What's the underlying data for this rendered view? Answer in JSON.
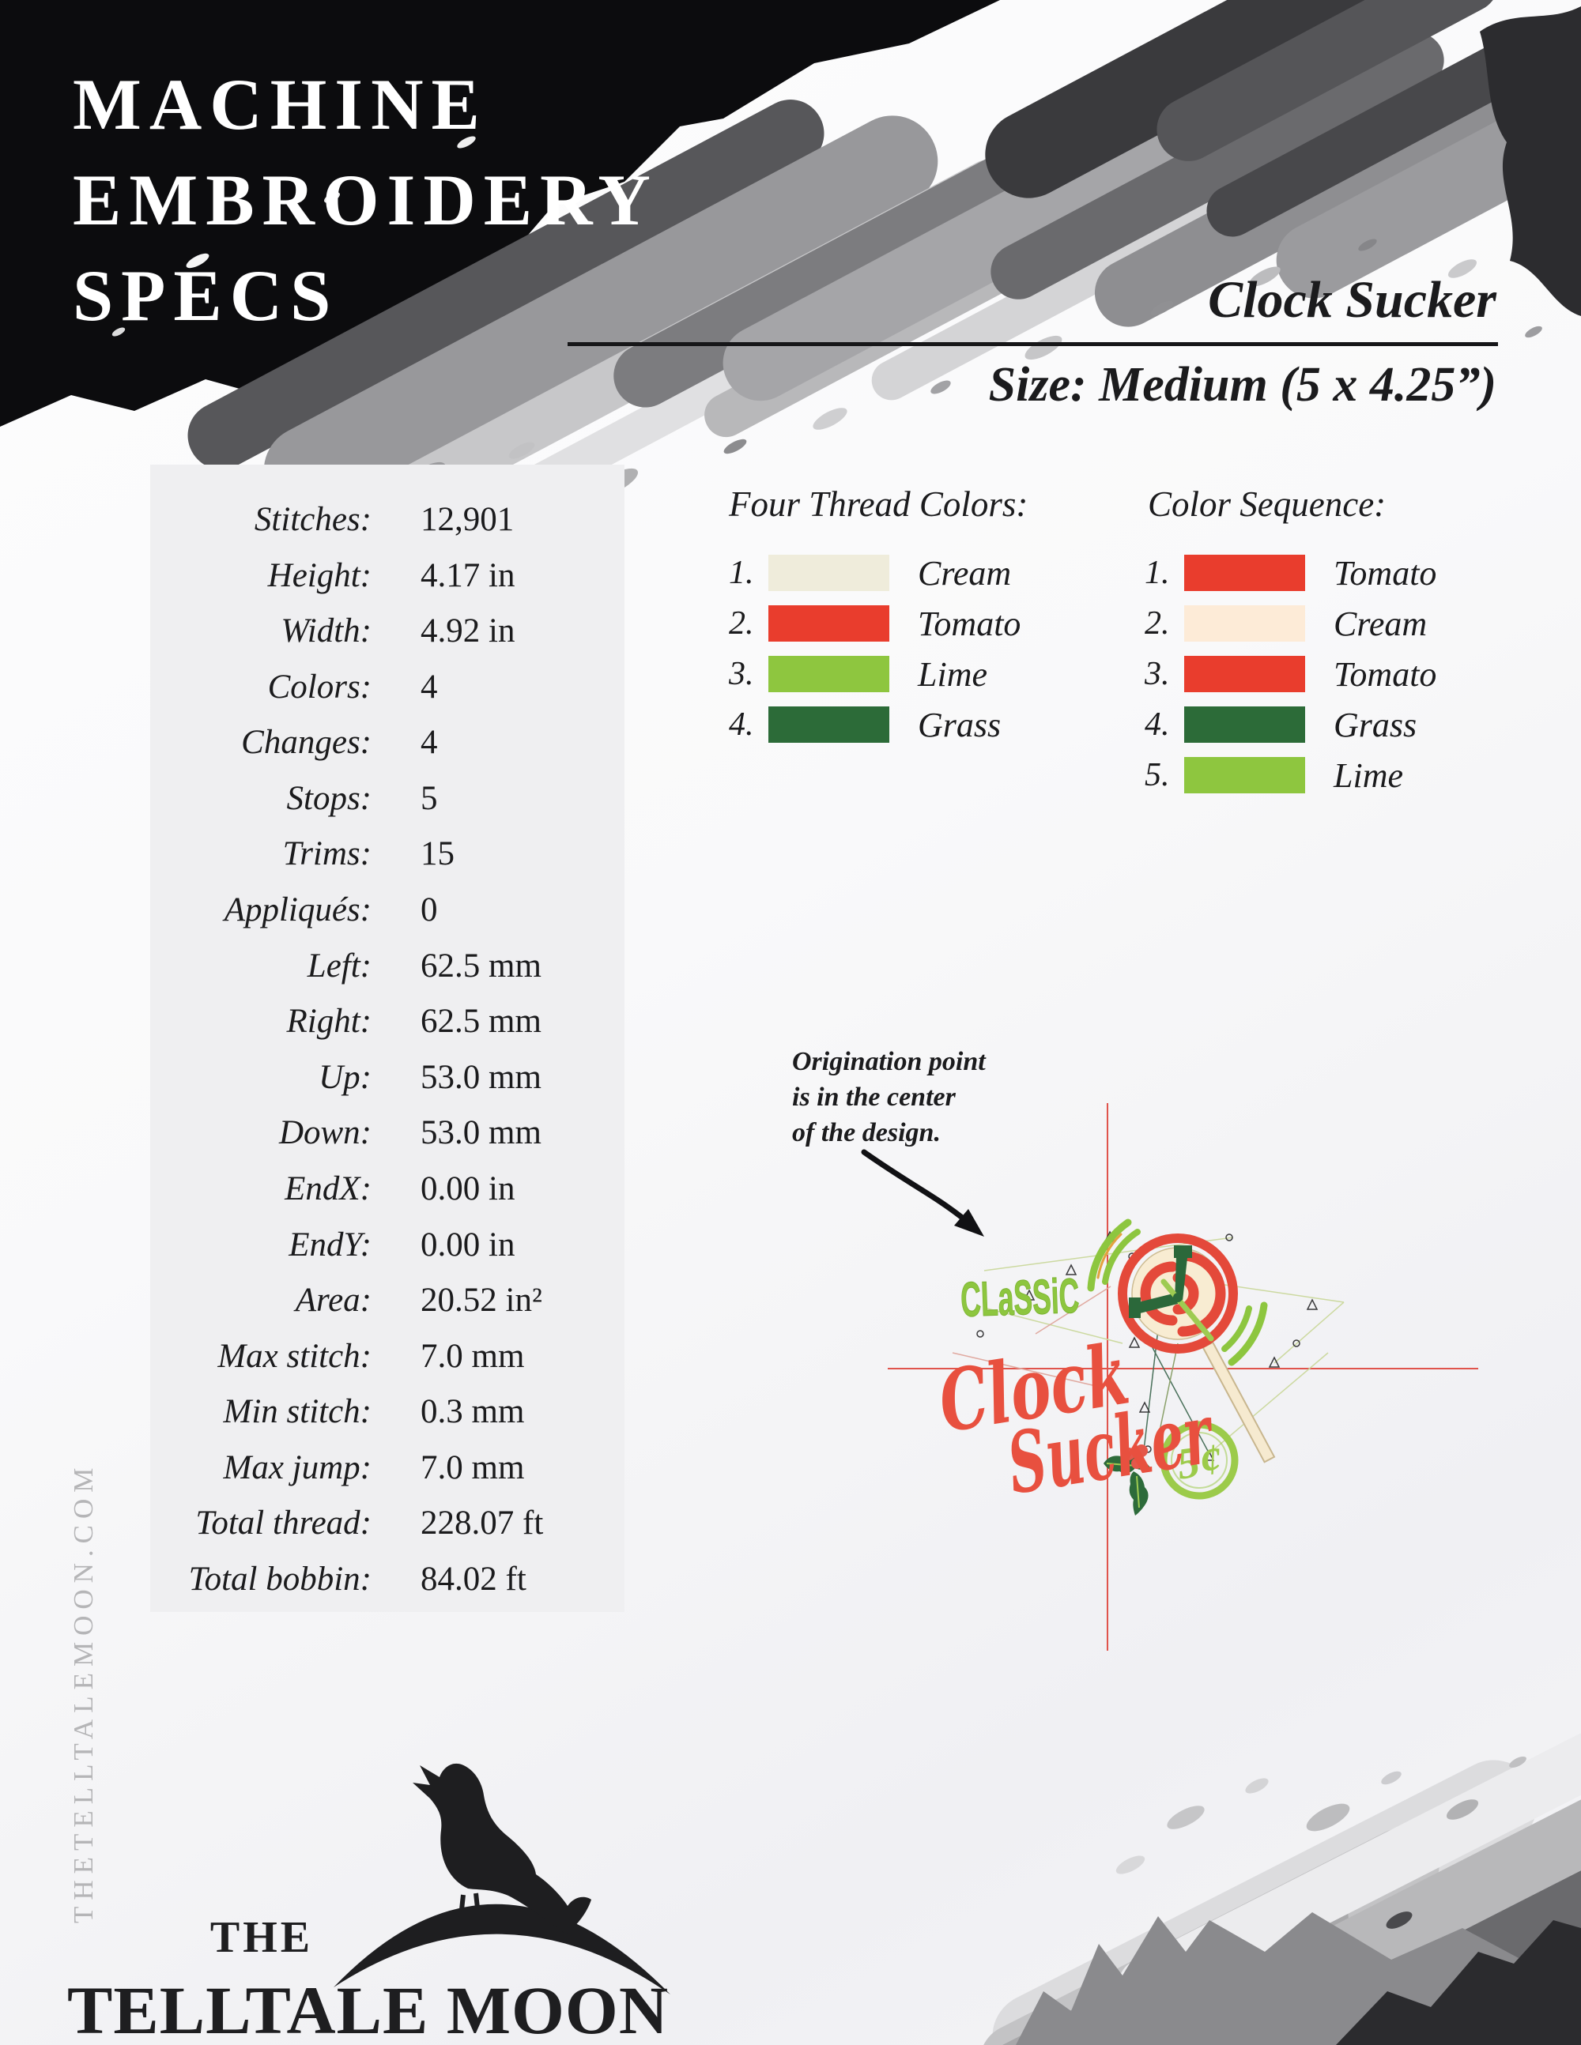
{
  "header": {
    "title_lines": [
      "MACHINE",
      "EMBROIDERY",
      "SPECS"
    ],
    "design_name": "Clock Sucker",
    "size_label": "Size: Medium (5 x 4.25”)"
  },
  "specs": {
    "rows": [
      {
        "label": "Stitches:",
        "value": "12,901"
      },
      {
        "label": "Height:",
        "value": "4.17 in"
      },
      {
        "label": "Width:",
        "value": "4.92 in"
      },
      {
        "label": "Colors:",
        "value": "4"
      },
      {
        "label": "Changes:",
        "value": "4"
      },
      {
        "label": "Stops:",
        "value": "5"
      },
      {
        "label": "Trims:",
        "value": "15"
      },
      {
        "label": "Appliqués:",
        "value": "0"
      },
      {
        "label": "Left:",
        "value": "62.5 mm"
      },
      {
        "label": "Right:",
        "value": "62.5 mm"
      },
      {
        "label": "Up:",
        "value": "53.0 mm"
      },
      {
        "label": "Down:",
        "value": "53.0 mm"
      },
      {
        "label": "EndX:",
        "value": "0.00 in"
      },
      {
        "label": "EndY:",
        "value": "0.00 in"
      },
      {
        "label": "Area:",
        "value": "20.52 in²"
      },
      {
        "label": "Max stitch:",
        "value": "7.0 mm"
      },
      {
        "label": "Min stitch:",
        "value": "0.3 mm"
      },
      {
        "label": "Max jump:",
        "value": "7.0 mm"
      },
      {
        "label": "Total thread:",
        "value": "228.07 ft"
      },
      {
        "label": "Total bobbin:",
        "value": "84.02 ft"
      }
    ]
  },
  "thread_colors": {
    "heading": "Four Thread Colors:",
    "items": [
      {
        "num": "1.",
        "name": "Cream",
        "color": "#efecdb"
      },
      {
        "num": "2.",
        "name": "Tomato",
        "color": "#e93d2d"
      },
      {
        "num": "3.",
        "name": "Lime",
        "color": "#8ec63f"
      },
      {
        "num": "4.",
        "name": "Grass",
        "color": "#2c6b38"
      }
    ]
  },
  "color_sequence": {
    "heading": "Color Sequence:",
    "items": [
      {
        "num": "1.",
        "name": "Tomato",
        "color": "#e93d2d"
      },
      {
        "num": "2.",
        "name": "Cream",
        "color": "#fdebd7"
      },
      {
        "num": "3.",
        "name": "Tomato",
        "color": "#e93d2d"
      },
      {
        "num": "4.",
        "name": "Grass",
        "color": "#2c6b38"
      },
      {
        "num": "5.",
        "name": "Lime",
        "color": "#8ec63f"
      }
    ]
  },
  "origination_note": {
    "lines": [
      "Origination point",
      "is in the center",
      "of the design."
    ]
  },
  "design_preview": {
    "words": {
      "classic": "CLaSSiC",
      "clock": "Clock",
      "sucker": "Sucker",
      "price": "5¢"
    },
    "colors": {
      "red": "#e8503f",
      "lime": "#8dc63f",
      "grass": "#2b683a",
      "cream": "#f7ead0",
      "crosshair": "#e0544c"
    }
  },
  "footer": {
    "website_vertical": "THETELLTALEMOON.COM",
    "logo_the": "THE",
    "logo_name": "TELLTALE MOON"
  }
}
